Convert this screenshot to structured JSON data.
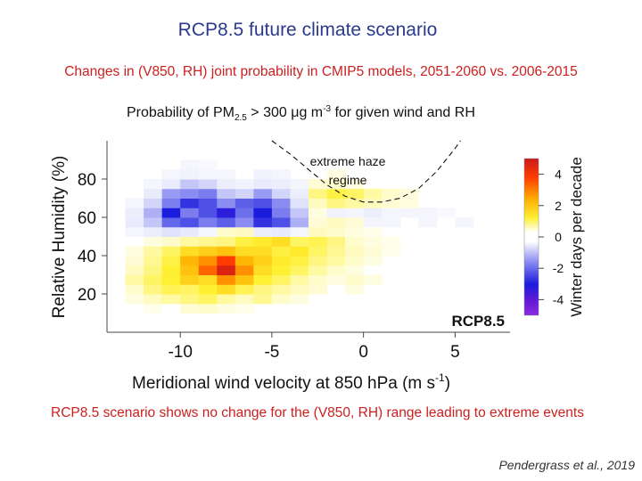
{
  "slide": {
    "title": "RCP8.5 future climate scenario",
    "subtitle": "Changes in (V850, RH) joint probability in CMIP5 models, 2051-2060 vs. 2006-2015",
    "conclusion": "RCP8.5 scenario shows no change for the (V850, RH) range leading to extreme events",
    "citation": "Pendergrass et al., 2019"
  },
  "colors": {
    "title": "#2b3a8f",
    "text_red": "#cc1f1f",
    "positive": "#ff2a00",
    "negative": "#1f1fd6",
    "neutral": "#ffffff"
  },
  "chart_data": {
    "type": "heatmap",
    "figure_title": "Probability of PM2.5 > 300 μg m⁻³ for given wind and RH",
    "figure_title_parts": {
      "before": "Probability of PM",
      "subscript": "2.5",
      "middle": " > 300 μg m",
      "superscript": "-3",
      "after": " for given wind and RH"
    },
    "xlabel": "Meridional wind velocity at 850 hPa (m s⁻¹)",
    "xlabel_parts": {
      "before": "Meridional wind velocity at 850 hPa (m s",
      "superscript": "-1",
      "after": ")"
    },
    "ylabel": "Relative Humidity (%)",
    "xlim": [
      -14,
      8
    ],
    "ylim": [
      0,
      100
    ],
    "xticks": [
      -10,
      -5,
      0,
      5
    ],
    "xtick_labels": [
      "-10",
      "-5",
      "0",
      "5"
    ],
    "yticks": [
      20,
      40,
      60,
      80
    ],
    "ytick_labels": [
      "20",
      "40",
      "60",
      "80"
    ],
    "x_edges": [
      -14,
      -13,
      -12,
      -11,
      -10,
      -9,
      -8,
      -7,
      -6,
      -5,
      -4,
      -3,
      -2,
      -1,
      0,
      1,
      2,
      3,
      4,
      5,
      6,
      7,
      8
    ],
    "y_edges": [
      10,
      15,
      20,
      25,
      30,
      35,
      40,
      45,
      50,
      55,
      60,
      65,
      70,
      75,
      80,
      85,
      90,
      95,
      100
    ],
    "values": [
      [
        0.0,
        0.0,
        0.2,
        0.0,
        0.4,
        0.5,
        0.3,
        0.2,
        0.0,
        0.0,
        0.0,
        0.0,
        0.0,
        0.0,
        0.0,
        0.0,
        0.0,
        0.0,
        0.0,
        0.0,
        0.0,
        0.0
      ],
      [
        0.0,
        0.3,
        0.6,
        0.8,
        1.0,
        1.2,
        0.8,
        0.6,
        0.9,
        0.5,
        0.3,
        0.0,
        0.0,
        0.0,
        0.0,
        0.0,
        0.0,
        0.0,
        0.0,
        0.0,
        0.0,
        0.0
      ],
      [
        0.0,
        0.5,
        1.0,
        1.3,
        1.2,
        1.5,
        1.8,
        1.3,
        1.0,
        0.8,
        0.6,
        0.4,
        0.0,
        0.3,
        0.0,
        0.0,
        0.0,
        0.0,
        0.0,
        0.0,
        0.0,
        0.0
      ],
      [
        0.0,
        0.8,
        1.2,
        1.5,
        2.0,
        1.8,
        2.8,
        2.2,
        1.5,
        1.2,
        0.8,
        0.5,
        0.3,
        0.5,
        0.3,
        0.0,
        0.0,
        0.0,
        0.0,
        0.0,
        0.0,
        0.0
      ],
      [
        0.0,
        0.6,
        1.0,
        1.5,
        2.2,
        3.2,
        4.6,
        2.8,
        1.8,
        1.5,
        1.2,
        0.8,
        0.5,
        0.3,
        0.0,
        0.0,
        0.0,
        0.0,
        0.0,
        0.0,
        0.0,
        0.0
      ],
      [
        0.0,
        0.4,
        0.9,
        1.4,
        2.4,
        2.8,
        3.6,
        2.4,
        2.0,
        1.6,
        1.4,
        1.0,
        0.8,
        0.5,
        0.3,
        0.0,
        0.0,
        0.0,
        0.0,
        0.0,
        0.0,
        0.0
      ],
      [
        0.0,
        0.3,
        0.8,
        1.2,
        1.8,
        2.0,
        2.2,
        1.8,
        1.8,
        1.4,
        1.6,
        1.2,
        0.9,
        0.6,
        0.4,
        0.2,
        0.0,
        0.0,
        0.0,
        0.0,
        0.0,
        0.0
      ],
      [
        0.0,
        0.0,
        0.3,
        0.5,
        0.8,
        0.9,
        1.0,
        1.4,
        1.6,
        1.8,
        1.2,
        1.3,
        1.0,
        0.5,
        0.3,
        0.2,
        0.0,
        0.0,
        0.0,
        0.0,
        0.0,
        0.0
      ],
      [
        0.0,
        -0.3,
        -0.5,
        -0.8,
        -0.6,
        -0.3,
        0.5,
        0.6,
        -0.5,
        -0.6,
        -0.3,
        0.6,
        0.5,
        0.3,
        0.2,
        0.0,
        0.0,
        0.0,
        0.0,
        0.0,
        0.0,
        0.0
      ],
      [
        0.0,
        -0.6,
        -1.2,
        -2.5,
        -2.8,
        -2.2,
        -2.6,
        -2.0,
        -3.2,
        -2.8,
        -1.5,
        0.4,
        0.6,
        0.4,
        -0.3,
        -0.3,
        0.0,
        -0.3,
        0.0,
        -0.3,
        0.0,
        0.0
      ],
      [
        0.0,
        -0.5,
        -1.5,
        -3.5,
        -2.2,
        -2.8,
        -3.8,
        -2.4,
        -3.5,
        -2.2,
        -1.2,
        0.3,
        -0.4,
        -0.3,
        -0.5,
        -0.3,
        -0.3,
        -0.3,
        -0.2,
        0.0,
        0.0,
        0.0
      ],
      [
        0.0,
        -0.3,
        -1.0,
        -2.2,
        -3.2,
        -2.8,
        -2.0,
        -2.6,
        -2.8,
        -2.0,
        -0.8,
        0.6,
        1.0,
        0.8,
        0.6,
        0.4,
        0.3,
        0.0,
        0.0,
        0.0,
        0.0,
        0.0
      ],
      [
        0.0,
        0.0,
        -0.6,
        -1.8,
        -2.0,
        -2.2,
        -1.2,
        -1.0,
        -1.8,
        -1.0,
        -0.5,
        1.0,
        1.4,
        1.2,
        0.8,
        0.5,
        0.3,
        0.0,
        0.0,
        0.0,
        0.0,
        0.0
      ],
      [
        0.0,
        0.0,
        -0.3,
        -0.6,
        -1.2,
        -1.0,
        -0.5,
        -0.4,
        -0.6,
        -0.5,
        -0.3,
        0.4,
        0.5,
        0.3,
        0.0,
        0.0,
        0.0,
        0.0,
        0.0,
        0.0,
        0.0,
        0.0
      ],
      [
        0.0,
        0.0,
        0.0,
        -0.3,
        -0.4,
        -0.3,
        -0.3,
        0.0,
        -0.4,
        -0.3,
        0.0,
        0.0,
        0.3,
        0.0,
        0.0,
        0.0,
        0.0,
        0.0,
        0.0,
        0.0,
        0.0,
        0.0
      ],
      [
        0.0,
        0.0,
        0.0,
        0.0,
        -0.3,
        -0.2,
        0.0,
        0.0,
        0.0,
        0.0,
        0.0,
        0.0,
        0.0,
        0.0,
        0.0,
        0.0,
        0.0,
        0.0,
        0.0,
        0.0,
        0.0,
        0.0
      ],
      [
        0.0,
        0.0,
        0.0,
        0.0,
        0.0,
        0.0,
        0.0,
        0.0,
        0.0,
        0.0,
        0.0,
        0.0,
        0.0,
        0.0,
        0.0,
        0.0,
        0.0,
        0.0,
        0.0,
        0.0,
        0.0,
        0.0
      ],
      [
        0.0,
        0.0,
        0.0,
        0.0,
        0.0,
        0.0,
        0.0,
        0.0,
        0.0,
        0.0,
        0.0,
        0.0,
        0.0,
        0.0,
        0.0,
        0.0,
        0.0,
        0.0,
        0.0,
        0.0,
        0.0,
        0.0
      ]
    ],
    "colorbar": {
      "label": "Winter days per decade",
      "range": [
        -5,
        5
      ],
      "ticks": [
        4,
        2,
        0,
        -2,
        -4
      ],
      "tick_labels": [
        "4",
        "2",
        "0",
        "-2",
        "-4"
      ]
    },
    "regime_boundary": {
      "label_lines": [
        "extreme haze",
        "regime"
      ],
      "points": [
        [
          -5.0,
          100
        ],
        [
          -4.0,
          93
        ],
        [
          -3.0,
          85
        ],
        [
          -2.0,
          77
        ],
        [
          -1.0,
          71
        ],
        [
          0.0,
          68
        ],
        [
          1.0,
          68
        ],
        [
          2.0,
          70
        ],
        [
          3.0,
          75
        ],
        [
          4.0,
          84
        ],
        [
          5.0,
          96
        ],
        [
          5.3,
          100
        ]
      ]
    },
    "panel_label": "RCP8.5"
  }
}
